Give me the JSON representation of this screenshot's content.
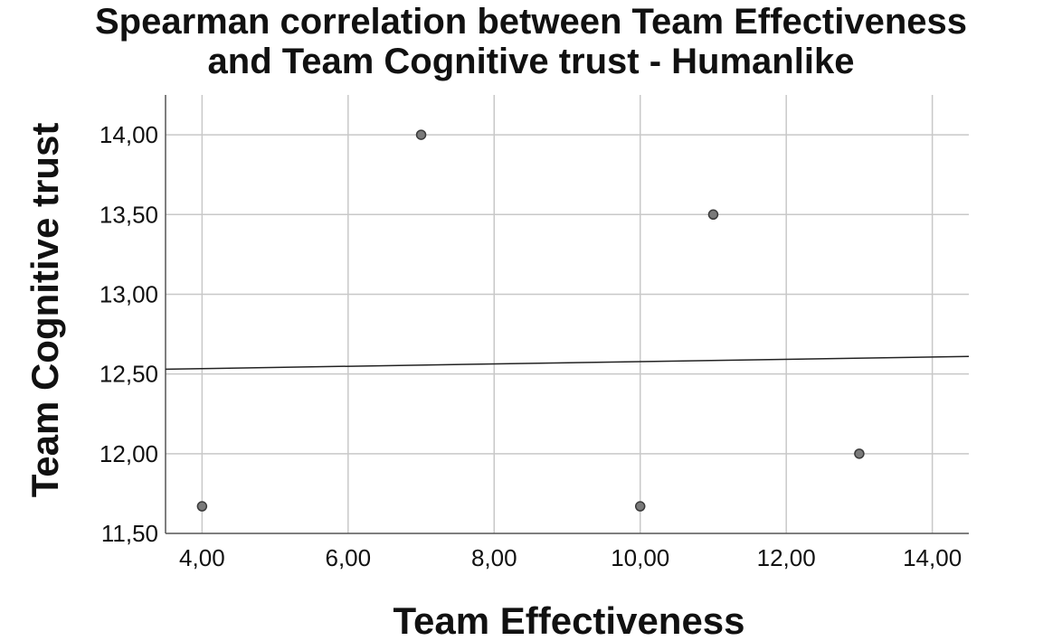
{
  "chart_data": {
    "type": "scatter",
    "title": [
      "Spearman correlation between Team Effectiveness",
      "and Team Cognitive trust - Humanlike"
    ],
    "xlabel": "Team Effectiveness",
    "ylabel": "Team Cognitive trust",
    "xlim": [
      3.5,
      14.5
    ],
    "ylim": [
      11.5,
      14.25
    ],
    "x_ticks": [
      4,
      6,
      8,
      10,
      12,
      14
    ],
    "x_tick_labels": [
      "4,00",
      "6,00",
      "8,00",
      "10,00",
      "12,00",
      "14,00"
    ],
    "y_ticks": [
      11.5,
      12,
      12.5,
      13,
      13.5,
      14
    ],
    "y_tick_labels": [
      "11,50",
      "12,00",
      "12,50",
      "13,00",
      "13,50",
      "14,00"
    ],
    "grid": true,
    "points": [
      {
        "x": 4,
        "y": 11.67
      },
      {
        "x": 7,
        "y": 14.0
      },
      {
        "x": 10,
        "y": 11.67
      },
      {
        "x": 11,
        "y": 13.5
      },
      {
        "x": 13,
        "y": 12.0
      }
    ],
    "fit_line": {
      "x": [
        3.5,
        14.5
      ],
      "y": [
        12.53,
        12.61
      ]
    },
    "colors": {
      "point_fill": "#7a7a7a",
      "point_stroke": "#3a3a3a",
      "grid": "#c8c8c8",
      "axis": "#555555",
      "line": "#222222"
    }
  }
}
